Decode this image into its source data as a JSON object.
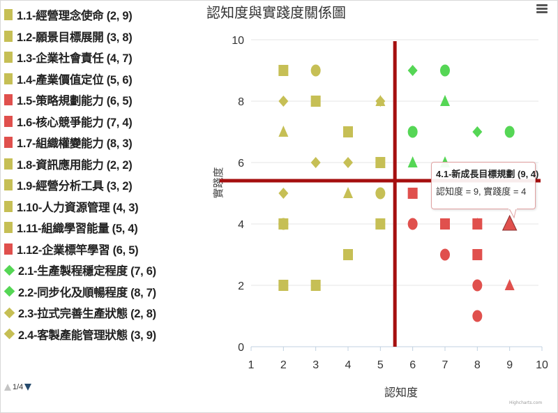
{
  "chart_data": {
    "type": "scatter",
    "title": "認知度與實踐度關係圖",
    "xlabel": "認知度",
    "ylabel": "實踐度",
    "xlim": [
      1,
      10
    ],
    "ylim": [
      0,
      10
    ],
    "x_ticks": [
      "1",
      "2",
      "3",
      "4",
      "5",
      "6",
      "7",
      "8",
      "9",
      "10"
    ],
    "y_ticks": [
      "0",
      "2",
      "4",
      "6",
      "8",
      "10"
    ],
    "grid": true,
    "legend_position": "left",
    "reference_lines": {
      "vertical_x": 5.45,
      "horizontal_y": 5.4,
      "color": "#a50f0f"
    },
    "colors": {
      "olive": "#c6bf55",
      "red": "#e0504d",
      "green": "#55d655"
    },
    "series": [
      {
        "name": "1.1-經營理念使命 (2, 9)",
        "x": 2,
        "y": 9,
        "symbol": "square",
        "color": "olive"
      },
      {
        "name": "1.2-願景目標展開 (3, 8)",
        "x": 3,
        "y": 8,
        "symbol": "square",
        "color": "olive"
      },
      {
        "name": "1.3-企業社會責任 (4, 7)",
        "x": 4,
        "y": 7,
        "symbol": "square",
        "color": "olive"
      },
      {
        "name": "1.4-產業價值定位 (5, 6)",
        "x": 5,
        "y": 6,
        "symbol": "square",
        "color": "olive"
      },
      {
        "name": "1.5-策略規劃能力 (6, 5)",
        "x": 6,
        "y": 5,
        "symbol": "square",
        "color": "red"
      },
      {
        "name": "1.6-核心競爭能力 (7, 4)",
        "x": 7,
        "y": 4,
        "symbol": "square",
        "color": "red"
      },
      {
        "name": "1.7-組織權變能力 (8, 3)",
        "x": 8,
        "y": 3,
        "symbol": "square",
        "color": "red"
      },
      {
        "name": "1.8-資訊應用能力 (2, 2)",
        "x": 2,
        "y": 2,
        "symbol": "square",
        "color": "olive"
      },
      {
        "name": "1.9-經營分析工具 (3, 2)",
        "x": 3,
        "y": 2,
        "symbol": "square",
        "color": "olive"
      },
      {
        "name": "1.10-人力資源管理 (4, 3)",
        "x": 4,
        "y": 3,
        "symbol": "square",
        "color": "olive"
      },
      {
        "name": "1.11-組織學習能量 (5, 4)",
        "x": 5,
        "y": 4,
        "symbol": "square",
        "color": "olive"
      },
      {
        "name": "1.12-企業標竿學習 (6, 5)",
        "x": 6,
        "y": 5,
        "symbol": "square",
        "color": "red"
      },
      {
        "name": "2.1-生產製程穩定程度 (7, 6)",
        "x": 7,
        "y": 6,
        "symbol": "diamond",
        "color": "green"
      },
      {
        "name": "2.2-同步化及順暢程度 (8, 7)",
        "x": 8,
        "y": 7,
        "symbol": "diamond",
        "color": "green"
      },
      {
        "name": "2.3-拉式完善生產狀態 (2, 8)",
        "x": 2,
        "y": 8,
        "symbol": "diamond",
        "color": "olive"
      },
      {
        "name": "2.4-客製產能管理狀態 (3, 9)",
        "x": 3,
        "y": 9,
        "symbol": "diamond",
        "color": "olive"
      }
    ],
    "all_points": [
      {
        "x": 2,
        "y": 9,
        "symbol": "square",
        "color": "olive"
      },
      {
        "x": 3,
        "y": 9,
        "symbol": "circle",
        "color": "olive"
      },
      {
        "x": 2,
        "y": 8,
        "symbol": "diamond",
        "color": "olive"
      },
      {
        "x": 3,
        "y": 8,
        "symbol": "square",
        "color": "olive"
      },
      {
        "x": 5,
        "y": 8,
        "symbol": "triangle",
        "color": "olive"
      },
      {
        "x": 5,
        "y": 8,
        "symbol": "diamond",
        "color": "olive"
      },
      {
        "x": 2,
        "y": 7,
        "symbol": "triangle",
        "color": "olive"
      },
      {
        "x": 4,
        "y": 7,
        "symbol": "square",
        "color": "olive"
      },
      {
        "x": 3,
        "y": 6,
        "symbol": "diamond",
        "color": "olive"
      },
      {
        "x": 4,
        "y": 6,
        "symbol": "diamond",
        "color": "olive"
      },
      {
        "x": 5,
        "y": 6,
        "symbol": "square",
        "color": "olive"
      },
      {
        "x": 2,
        "y": 5,
        "symbol": "diamond",
        "color": "olive"
      },
      {
        "x": 4,
        "y": 5,
        "symbol": "triangle",
        "color": "olive"
      },
      {
        "x": 5,
        "y": 5,
        "symbol": "circle",
        "color": "olive"
      },
      {
        "x": 2,
        "y": 4,
        "symbol": "square",
        "color": "olive"
      },
      {
        "x": 2,
        "y": 4,
        "symbol": "circle",
        "color": "olive"
      },
      {
        "x": 5,
        "y": 4,
        "symbol": "square",
        "color": "olive"
      },
      {
        "x": 4,
        "y": 3,
        "symbol": "square",
        "color": "olive"
      },
      {
        "x": 2,
        "y": 2,
        "symbol": "square",
        "color": "olive"
      },
      {
        "x": 3,
        "y": 2,
        "symbol": "square",
        "color": "olive"
      },
      {
        "x": 6,
        "y": 9,
        "symbol": "diamond",
        "color": "green"
      },
      {
        "x": 7,
        "y": 9,
        "symbol": "circle",
        "color": "green"
      },
      {
        "x": 7,
        "y": 8,
        "symbol": "triangle",
        "color": "green"
      },
      {
        "x": 6,
        "y": 7,
        "symbol": "circle",
        "color": "green"
      },
      {
        "x": 8,
        "y": 7,
        "symbol": "diamond",
        "color": "green"
      },
      {
        "x": 9,
        "y": 7,
        "symbol": "circle",
        "color": "green"
      },
      {
        "x": 6,
        "y": 6,
        "symbol": "triangle",
        "color": "green"
      },
      {
        "x": 7,
        "y": 6,
        "symbol": "triangle",
        "color": "green"
      },
      {
        "x": 6,
        "y": 5,
        "symbol": "square",
        "color": "red"
      },
      {
        "x": 6,
        "y": 4,
        "symbol": "circle",
        "color": "red"
      },
      {
        "x": 7,
        "y": 4,
        "symbol": "square",
        "color": "red"
      },
      {
        "x": 8,
        "y": 4,
        "symbol": "triangle",
        "color": "red"
      },
      {
        "x": 8,
        "y": 4,
        "symbol": "square",
        "color": "red"
      },
      {
        "x": 9,
        "y": 4,
        "symbol": "triangle",
        "color": "red"
      },
      {
        "x": 7,
        "y": 3,
        "symbol": "circle",
        "color": "red"
      },
      {
        "x": 8,
        "y": 3,
        "symbol": "square",
        "color": "red"
      },
      {
        "x": 8,
        "y": 2,
        "symbol": "circle",
        "color": "red"
      },
      {
        "x": 9,
        "y": 2,
        "symbol": "triangle",
        "color": "red"
      },
      {
        "x": 8,
        "y": 1,
        "symbol": "circle",
        "color": "red"
      }
    ]
  },
  "legend": {
    "items": [
      {
        "label": "1.1-經營理念使命 (2, 9)",
        "symbol": "square",
        "color": "#c6bf55"
      },
      {
        "label": "1.2-願景目標展開 (3, 8)",
        "symbol": "square",
        "color": "#c6bf55"
      },
      {
        "label": "1.3-企業社會責任 (4, 7)",
        "symbol": "square",
        "color": "#c6bf55"
      },
      {
        "label": "1.4-產業價值定位 (5, 6)",
        "symbol": "square",
        "color": "#c6bf55"
      },
      {
        "label": "1.5-策略規劃能力 (6, 5)",
        "symbol": "square",
        "color": "#e0504d"
      },
      {
        "label": "1.6-核心競爭能力 (7, 4)",
        "symbol": "square",
        "color": "#e0504d"
      },
      {
        "label": "1.7-組織權變能力 (8, 3)",
        "symbol": "square",
        "color": "#e0504d"
      },
      {
        "label": "1.8-資訊應用能力 (2, 2)",
        "symbol": "square",
        "color": "#c6bf55"
      },
      {
        "label": "1.9-經營分析工具 (3, 2)",
        "symbol": "square",
        "color": "#c6bf55"
      },
      {
        "label": "1.10-人力資源管理 (4, 3)",
        "symbol": "square",
        "color": "#c6bf55"
      },
      {
        "label": "1.11-組織學習能量 (5, 4)",
        "symbol": "square",
        "color": "#c6bf55"
      },
      {
        "label": "1.12-企業標竿學習 (6, 5)",
        "symbol": "square",
        "color": "#e0504d"
      },
      {
        "label": "2.1-生產製程穩定程度 (7, 6)",
        "symbol": "diamond",
        "color": "#55d655"
      },
      {
        "label": "2.2-同步化及順暢程度 (8, 7)",
        "symbol": "diamond",
        "color": "#55d655"
      },
      {
        "label": "2.3-拉式完善生產狀態 (2, 8)",
        "symbol": "diamond",
        "color": "#c6bf55"
      },
      {
        "label": "2.4-客製產能管理狀態 (3, 9)",
        "symbol": "diamond",
        "color": "#c6bf55"
      }
    ],
    "page_indicator": "1/4"
  },
  "header": {
    "title": "認知度與實踐度關係圖",
    "menu_icon": "hamburger-menu-icon"
  },
  "tooltip": {
    "title": "4.1-新成長目標規劃 (9, 4)",
    "body": "認知度 = 9, 實踐度 = 4"
  },
  "credit": "Highcharts.com"
}
